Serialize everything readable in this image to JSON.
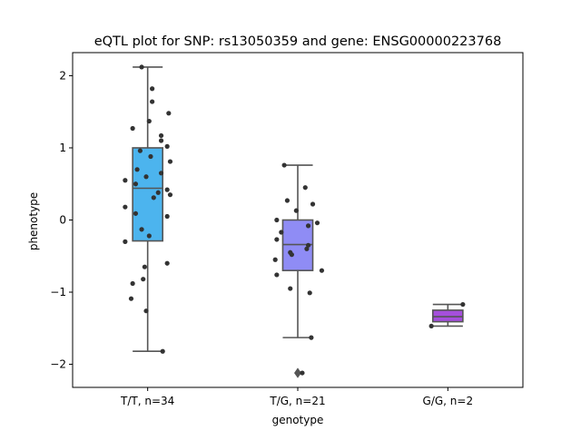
{
  "chart_data": {
    "type": "box",
    "title": "eQTL plot for SNP: rs13050359 and gene: ENSG00000223768",
    "xlabel": "genotype",
    "ylabel": "phenotype",
    "ylim": [
      -2.32,
      2.32
    ],
    "yticks": [
      -2,
      -1,
      0,
      1,
      2
    ],
    "categories": [
      "T/T, n=34",
      "T/G, n=21",
      "G/G, n=2"
    ],
    "colors": [
      "#4cb4ee",
      "#8f8cf5",
      "#a54fdc"
    ],
    "boxes": [
      {
        "category": "T/T, n=34",
        "whisker_low": -1.82,
        "q1": -0.29,
        "median": 0.44,
        "q3": 1.0,
        "whisker_high": 2.12,
        "outliers": []
      },
      {
        "category": "T/G, n=21",
        "whisker_low": -1.63,
        "q1": -0.7,
        "median": -0.34,
        "q3": 0.0,
        "whisker_high": 0.76,
        "outliers": [
          -2.12
        ]
      },
      {
        "category": "G/G, n=2",
        "whisker_low": -1.47,
        "q1": -1.41,
        "median": -1.34,
        "q3": -1.25,
        "whisker_high": -1.17,
        "outliers": []
      }
    ],
    "points": [
      [
        2.12,
        1.82,
        1.64,
        1.48,
        1.37,
        1.27,
        1.17,
        1.1,
        1.02,
        0.96,
        0.88,
        0.81,
        0.7,
        0.65,
        0.6,
        0.55,
        0.5,
        0.42,
        0.38,
        0.35,
        0.31,
        0.18,
        0.09,
        0.05,
        -0.13,
        -0.22,
        -0.3,
        -0.6,
        -0.65,
        -0.82,
        -0.88,
        -1.09,
        -1.26,
        -1.82
      ],
      [
        0.76,
        0.45,
        0.27,
        0.22,
        0.13,
        0.0,
        -0.04,
        -0.08,
        -0.17,
        -0.27,
        -0.35,
        -0.4,
        -0.45,
        -0.48,
        -0.55,
        -0.7,
        -0.76,
        -0.95,
        -1.01,
        -1.63,
        -2.12
      ],
      [
        -1.17,
        -1.47
      ]
    ],
    "point_offsets": [
      [
        -0.04,
        0.03,
        0.03,
        0.14,
        0.01,
        -0.1,
        0.09,
        0.09,
        0.13,
        -0.05,
        0.02,
        0.15,
        -0.07,
        0.09,
        -0.01,
        -0.15,
        -0.08,
        0.13,
        0.07,
        0.15,
        0.04,
        -0.15,
        -0.08,
        0.13,
        -0.04,
        0.01,
        -0.15,
        0.13,
        -0.02,
        -0.03,
        -0.1,
        -0.11,
        -0.01,
        0.1
      ],
      [
        -0.09,
        0.05,
        -0.07,
        0.1,
        -0.01,
        -0.14,
        0.13,
        0.07,
        -0.11,
        -0.14,
        0.07,
        0.06,
        -0.05,
        -0.04,
        -0.15,
        0.16,
        -0.14,
        -0.05,
        0.08,
        0.09,
        0.03
      ],
      [
        0.1,
        -0.11
      ]
    ],
    "grid": false,
    "legend": "none"
  }
}
